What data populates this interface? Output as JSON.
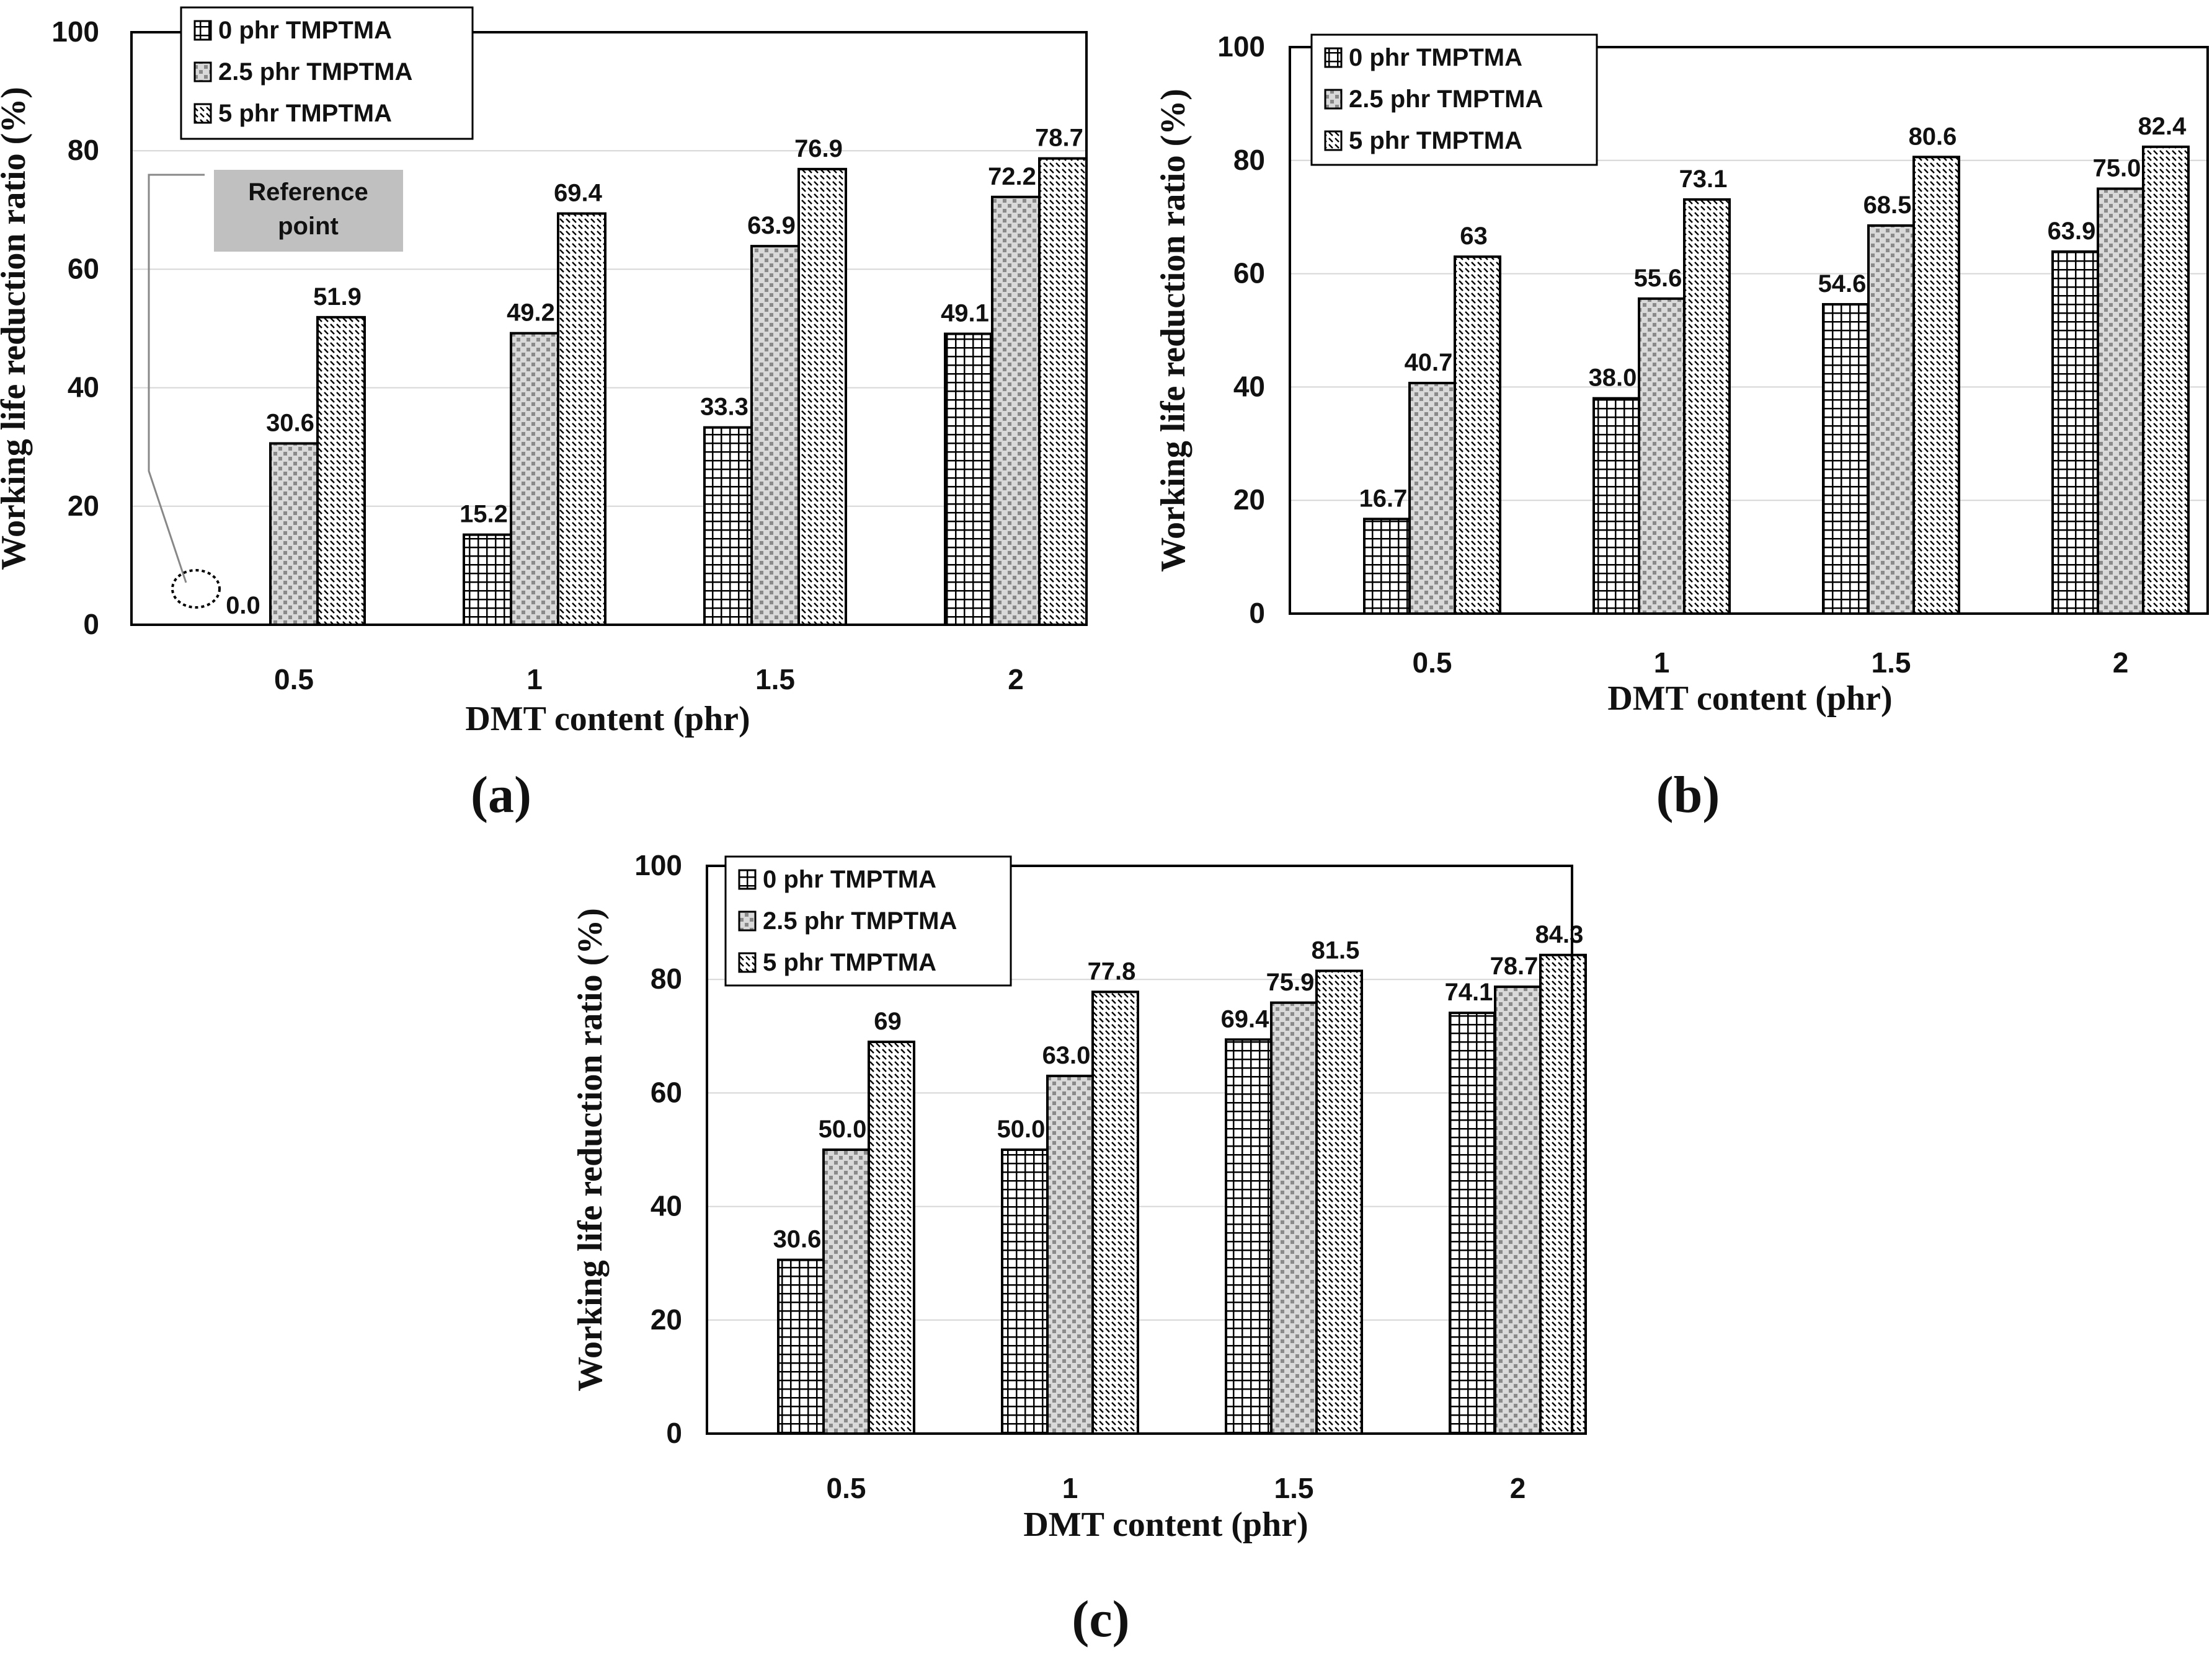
{
  "figure": {
    "panel_labels": [
      "(a)",
      "(b)",
      "(c)"
    ]
  },
  "chart_data": [
    {
      "type": "bar",
      "panel": "(a)",
      "categories": [
        "0.5",
        "1",
        "1.5",
        "2"
      ],
      "series": [
        {
          "name": "0 phr TMPTMA",
          "values": [
            0.0,
            15.2,
            33.3,
            49.1
          ],
          "labels": [
            "0.0",
            "15.2",
            "33.3",
            "49.1"
          ]
        },
        {
          "name": "2.5 phr TMPTMA",
          "values": [
            30.6,
            49.2,
            63.9,
            72.2
          ],
          "labels": [
            "30.6",
            "49.2",
            "63.9",
            "72.2"
          ]
        },
        {
          "name": "5 phr TMPTMA",
          "values": [
            51.9,
            69.4,
            76.9,
            78.7
          ],
          "labels": [
            "51.9",
            "69.4",
            "76.9",
            "78.7"
          ]
        }
      ],
      "yticks": [
        "0",
        "20",
        "40",
        "60",
        "80",
        "100"
      ],
      "ylim": [
        0,
        100
      ],
      "xlabel": "DMT content (phr)",
      "ylabel": "Working life reduction ratio (%)",
      "legend": "top-left",
      "annotation": {
        "text_line1": "Reference",
        "text_line2": "point",
        "target": "0.0"
      }
    },
    {
      "type": "bar",
      "panel": "(b)",
      "categories": [
        "0.5",
        "1",
        "1.5",
        "2"
      ],
      "series": [
        {
          "name": "0 phr TMPTMA",
          "values": [
            16.7,
            38.0,
            54.6,
            63.9
          ],
          "labels": [
            "16.7",
            "38.0",
            "54.6",
            "63.9"
          ]
        },
        {
          "name": "2.5 phr TMPTMA",
          "values": [
            40.7,
            55.6,
            68.5,
            75.0
          ],
          "labels": [
            "40.7",
            "55.6",
            "68.5",
            "75.0"
          ]
        },
        {
          "name": "5 phr TMPTMA",
          "values": [
            63,
            73.1,
            80.6,
            82.4
          ],
          "labels": [
            "63",
            "73.1",
            "80.6",
            "82.4"
          ]
        }
      ],
      "yticks": [
        "0",
        "20",
        "40",
        "60",
        "80",
        "100"
      ],
      "ylim": [
        0,
        100
      ],
      "xlabel": "DMT content (phr)",
      "ylabel": "Working life reduction ratio (%)",
      "legend": "top-left"
    },
    {
      "type": "bar",
      "panel": "(c)",
      "categories": [
        "0.5",
        "1",
        "1.5",
        "2"
      ],
      "series": [
        {
          "name": "0 phr TMPTMA",
          "values": [
            30.6,
            50.0,
            69.4,
            74.1
          ],
          "labels": [
            "30.6",
            "50.0",
            "69.4",
            "74.1"
          ]
        },
        {
          "name": "2.5 phr TMPTMA",
          "values": [
            50.0,
            63.0,
            75.9,
            78.7
          ],
          "labels": [
            "50.0",
            "63.0",
            "75.9",
            "78.7"
          ]
        },
        {
          "name": "5 phr TMPTMA",
          "values": [
            69,
            77.8,
            81.5,
            84.3
          ],
          "labels": [
            "69",
            "77.8",
            "81.5",
            "84.3"
          ]
        }
      ],
      "yticks": [
        "0",
        "20",
        "40",
        "60",
        "80",
        "100"
      ],
      "ylim": [
        0,
        100
      ],
      "xlabel": "DMT content (phr)",
      "ylabel": "Working life reduction ratio (%)",
      "legend": "top-left"
    }
  ]
}
